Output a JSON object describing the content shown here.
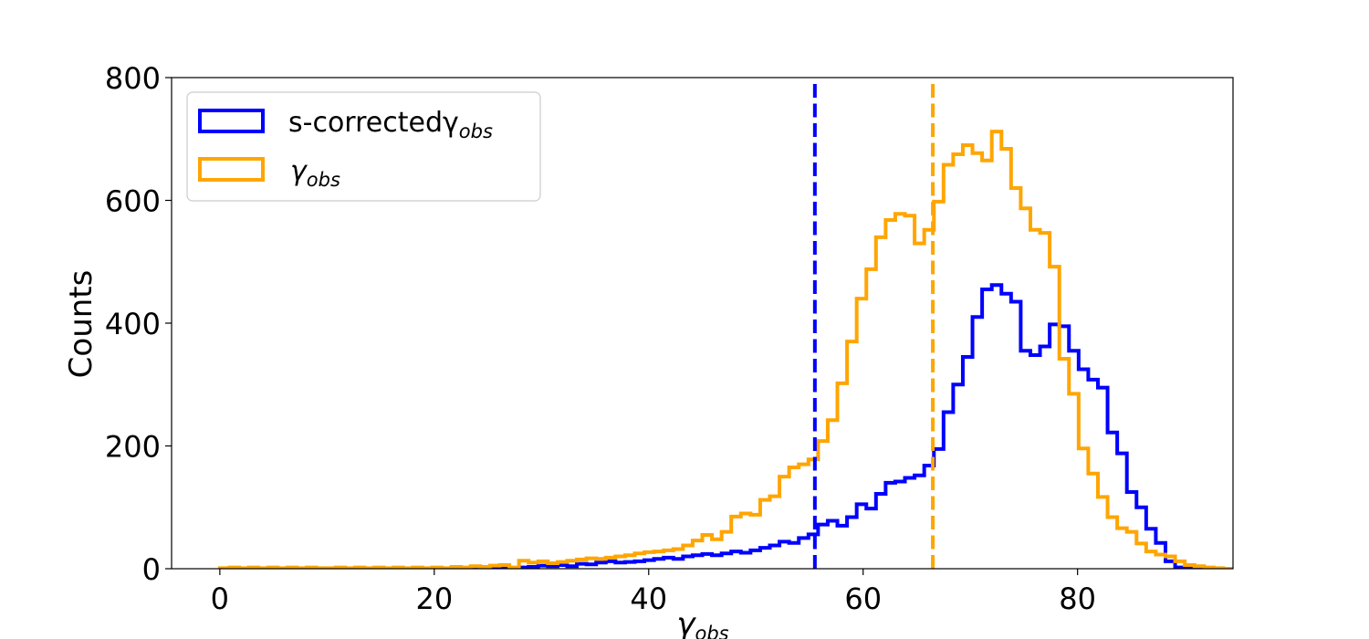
{
  "chart_data": {
    "type": "histogram",
    "xlabel": {
      "symbol": "γ",
      "subscript": "obs"
    },
    "ylabel": "Counts",
    "xlim": [
      -4.5,
      94.5
    ],
    "ylim": [
      0,
      800
    ],
    "xticks": [
      0,
      20,
      40,
      60,
      80
    ],
    "yticks": [
      0,
      200,
      400,
      600,
      800
    ],
    "bin_start": 0,
    "bin_width": 0.9,
    "legend_position": "upper left",
    "grid": false,
    "series": [
      {
        "name": "s-correctedγ",
        "name_subscript": "obs",
        "color": "#0000ff",
        "median_line": 55.5,
        "values": [
          0,
          0,
          0,
          0,
          0,
          0,
          0,
          0,
          0,
          0,
          0,
          0,
          0,
          0,
          0,
          0,
          0,
          0,
          0,
          0,
          0,
          0,
          0,
          0,
          0,
          0,
          0,
          0,
          0,
          0,
          1,
          2,
          3,
          5,
          4,
          6,
          4,
          8,
          7,
          10,
          12,
          10,
          11,
          12,
          14,
          16,
          18,
          16,
          20,
          22,
          24,
          22,
          25,
          28,
          26,
          30,
          34,
          38,
          44,
          42,
          50,
          56,
          72,
          78,
          70,
          84,
          105,
          98,
          122,
          140,
          142,
          148,
          152,
          168,
          195,
          255,
          300,
          345,
          410,
          455,
          462,
          448,
          435,
          355,
          348,
          362,
          398,
          395,
          355,
          325,
          308,
          295,
          222,
          188,
          125,
          100,
          65,
          42,
          12,
          2,
          1,
          0,
          0,
          0,
          0,
          0,
          0,
          0,
          0,
          0
        ]
      },
      {
        "name": "γ",
        "name_subscript": "obs",
        "color": "#ffa500",
        "median_line": 66.5,
        "values": [
          1,
          2,
          1,
          2,
          1,
          2,
          1,
          2,
          1,
          2,
          1,
          1,
          2,
          1,
          2,
          1,
          2,
          1,
          2,
          1,
          2,
          1,
          2,
          1,
          3,
          2,
          4,
          3,
          5,
          6,
          2,
          13,
          10,
          12,
          9,
          11,
          13,
          15,
          17,
          16,
          18,
          20,
          22,
          25,
          27,
          28,
          30,
          32,
          38,
          46,
          55,
          48,
          60,
          85,
          90,
          88,
          112,
          118,
          150,
          165,
          170,
          178,
          208,
          242,
          302,
          370,
          440,
          488,
          540,
          568,
          578,
          575,
          530,
          552,
          598,
          658,
          675,
          690,
          677,
          665,
          712,
          684,
          620,
          587,
          552,
          547,
          492,
          342,
          285,
          196,
          155,
          117,
          84,
          66,
          60,
          41,
          28,
          23,
          20,
          12,
          6,
          4,
          2,
          1,
          0,
          0,
          0,
          0,
          0,
          0
        ]
      }
    ]
  }
}
